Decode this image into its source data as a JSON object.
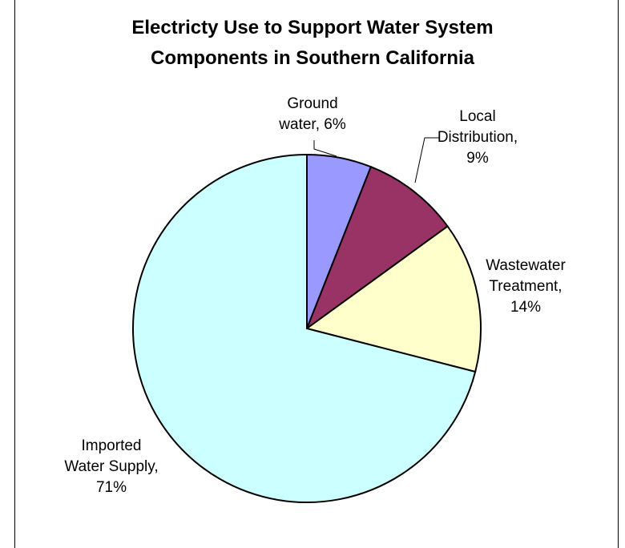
{
  "chart_data": {
    "type": "pie",
    "title_lines": [
      "Electricty Use to Support Water System",
      "Components in Southern California"
    ],
    "series": [
      {
        "values": [
          6,
          9,
          14,
          71
        ],
        "categories": [
          "Ground water",
          "Local Distribution",
          "Wastewater Treatment",
          "Imported Water Supply"
        ]
      }
    ],
    "slices": [
      {
        "category": "Ground water",
        "value": 6,
        "color": "#9999ff",
        "label_lines": [
          "Ground",
          "water, 6%"
        ]
      },
      {
        "category": "Local Distribution",
        "value": 9,
        "color": "#993366",
        "label_lines": [
          "Local",
          "Distribution,",
          "9%"
        ]
      },
      {
        "category": "Wastewater Treatment",
        "value": 14,
        "color": "#ffffcc",
        "label_lines": [
          "Wastewater",
          "Treatment,",
          "14%"
        ]
      },
      {
        "category": "Imported Water Supply",
        "value": 71,
        "color": "#ccffff",
        "label_lines": [
          "Imported",
          "Water Supply,",
          "71%"
        ]
      }
    ],
    "legend": "none",
    "data_labels": "category and percent outside slices"
  }
}
